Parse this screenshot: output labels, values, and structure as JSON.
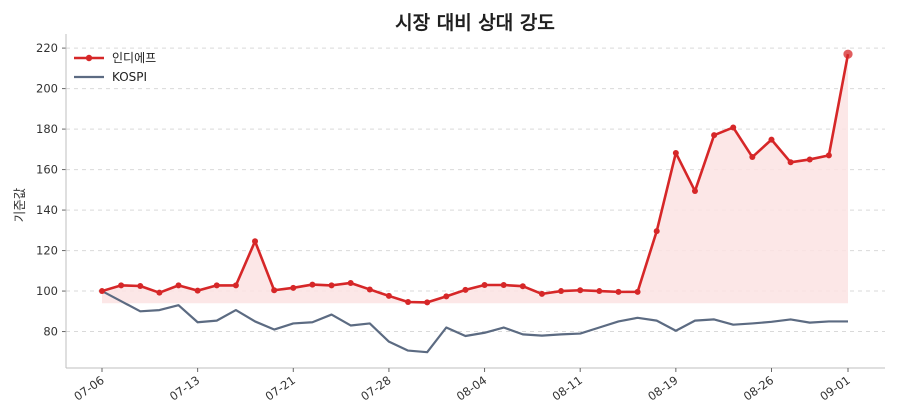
{
  "chart_data": {
    "type": "line",
    "title": "시장 대비 상대 강도",
    "ylabel": "기준값",
    "xlabel": "",
    "ylim": [
      62,
      224
    ],
    "yticks": [
      80,
      100,
      120,
      140,
      160,
      180,
      200,
      220
    ],
    "xticks": [
      "07-06",
      "07-13",
      "07-21",
      "07-28",
      "08-04",
      "08-11",
      "08-19",
      "08-26",
      "09-01"
    ],
    "grid": "horizontal-dashed",
    "legend_position": "top-left",
    "baseline": 94,
    "series": [
      {
        "name": "인디에프",
        "color": "#d62728",
        "marker": "circle",
        "fill": "#fbe3e3",
        "values": [
          100,
          102.8,
          102.5,
          99.2,
          102.8,
          100.2,
          102.8,
          102.8,
          124.6,
          100.4,
          101.6,
          103.2,
          102.8,
          104,
          100.8,
          97.6,
          94.6,
          94.4,
          97.4,
          100.6,
          103,
          103,
          102.4,
          98.6,
          100,
          100.4,
          100,
          99.6,
          99.6,
          129.6,
          168.2,
          149.4,
          177,
          180.8,
          166.2,
          174.8,
          163.6,
          165,
          167,
          217
        ]
      },
      {
        "name": "KOSPI",
        "color": "#5c6b82",
        "values": [
          100,
          95,
          90,
          90.6,
          93,
          84.6,
          85.4,
          90.6,
          85,
          81,
          84,
          84.6,
          88.4,
          83,
          84,
          75,
          70.6,
          69.8,
          82,
          77.8,
          79.4,
          82,
          78.6,
          78,
          78.6,
          79,
          82,
          85,
          86.8,
          85.4,
          80.4,
          85.4,
          86,
          83.4,
          84,
          84.8,
          86,
          84.4,
          85,
          85
        ]
      }
    ]
  }
}
